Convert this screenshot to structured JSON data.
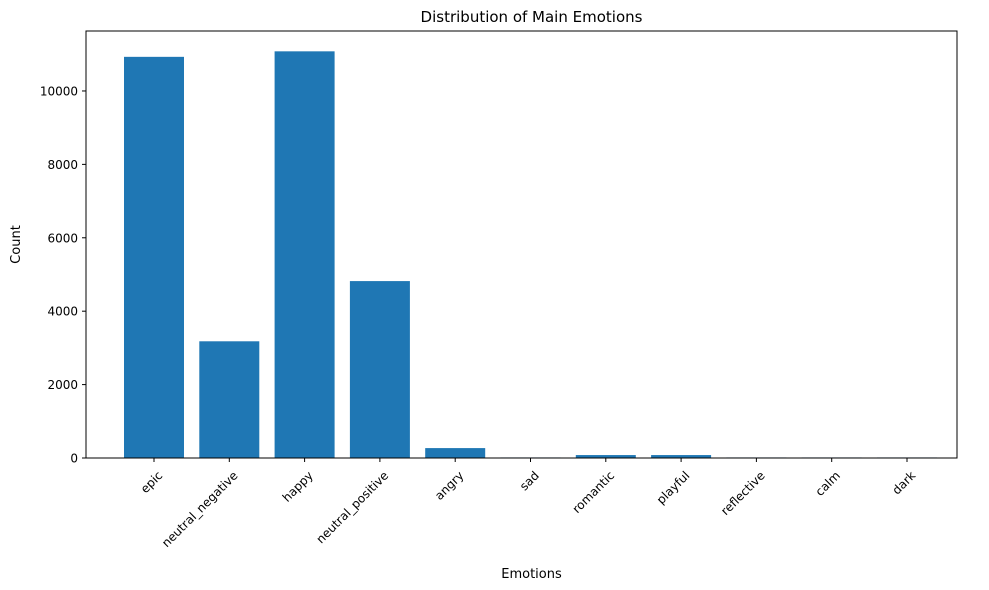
{
  "chart_data": {
    "type": "bar",
    "title": "Distribution of Main Emotions",
    "xlabel": "Emotions",
    "ylabel": "Count",
    "categories": [
      "epic",
      "neutral_negative",
      "happy",
      "neutral_positive",
      "angry",
      "sad",
      "romantic",
      "playful",
      "reflective",
      "calm",
      "dark"
    ],
    "values": [
      10930,
      3180,
      11080,
      4820,
      270,
      15,
      80,
      80,
      15,
      15,
      15
    ],
    "ylim": [
      0,
      11634
    ],
    "yticks": [
      0,
      2000,
      4000,
      6000,
      8000,
      10000
    ],
    "bar_color": "#1f77b4",
    "grid": false,
    "legend": "none"
  }
}
